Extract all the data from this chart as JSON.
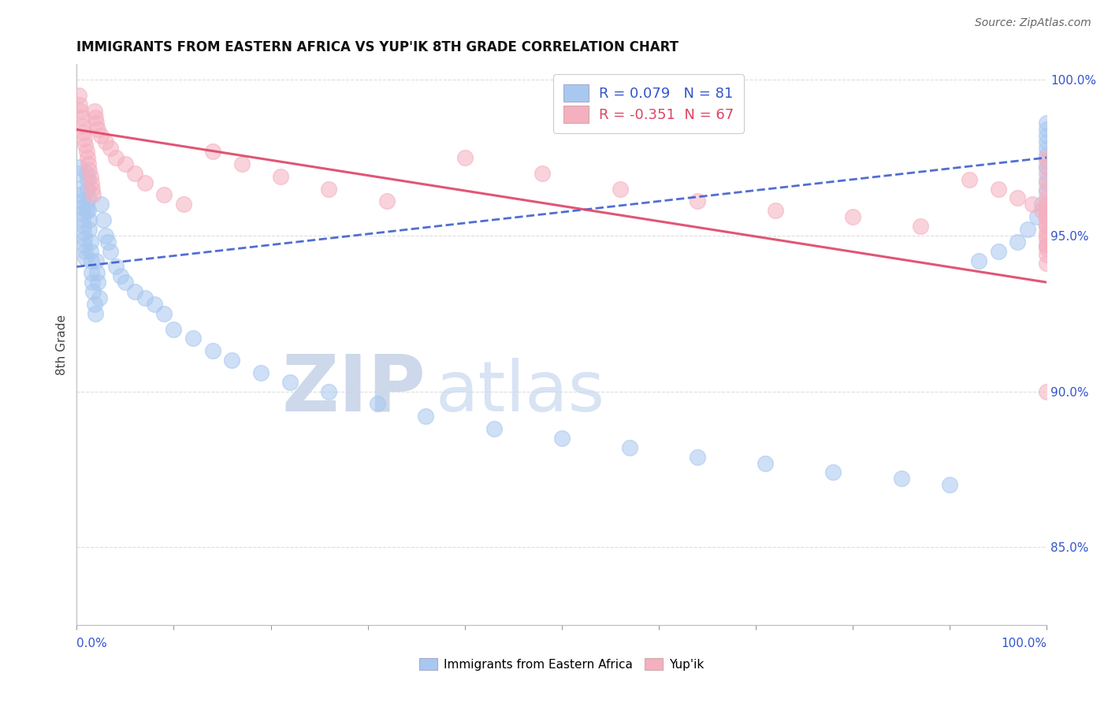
{
  "title": "IMMIGRANTS FROM EASTERN AFRICA VS YUP'IK 8TH GRADE CORRELATION CHART",
  "source": "Source: ZipAtlas.com",
  "ylabel": "8th Grade",
  "blue_R": 0.079,
  "blue_N": 81,
  "pink_R": -0.351,
  "pink_N": 67,
  "legend_label_blue": "Immigrants from Eastern Africa",
  "legend_label_pink": "Yup'ik",
  "blue_color": "#A8C8F0",
  "pink_color": "#F5B0C0",
  "blue_line_color": "#3355CC",
  "pink_line_color": "#DD4466",
  "blue_line_style": "--",
  "pink_line_style": "-",
  "watermark_zip": "ZIP",
  "watermark_atlas": "atlas",
  "background_color": "#FFFFFF",
  "grid_color": "#DDDDDD",
  "tick_color": "#3355CC",
  "xlim": [
    0.0,
    1.0
  ],
  "ylim": [
    0.825,
    1.005
  ],
  "y_ticks": [
    0.85,
    0.9,
    0.95,
    1.0
  ],
  "y_tick_labels": [
    "85.0%",
    "90.0%",
    "95.0%",
    "100.0%"
  ],
  "blue_line_x": [
    0.0,
    1.0
  ],
  "blue_line_y": [
    0.94,
    0.975
  ],
  "pink_line_x": [
    0.0,
    1.0
  ],
  "pink_line_y": [
    0.984,
    0.935
  ],
  "blue_x": [
    0.002,
    0.003,
    0.004,
    0.004,
    0.005,
    0.005,
    0.006,
    0.006,
    0.007,
    0.007,
    0.008,
    0.008,
    0.009,
    0.009,
    0.01,
    0.01,
    0.01,
    0.011,
    0.011,
    0.012,
    0.012,
    0.013,
    0.013,
    0.014,
    0.014,
    0.015,
    0.015,
    0.016,
    0.017,
    0.018,
    0.019,
    0.02,
    0.021,
    0.022,
    0.023,
    0.025,
    0.027,
    0.03,
    0.032,
    0.035,
    0.04,
    0.045,
    0.05,
    0.06,
    0.07,
    0.08,
    0.09,
    0.1,
    0.12,
    0.14,
    0.16,
    0.19,
    0.22,
    0.26,
    0.31,
    0.36,
    0.43,
    0.5,
    0.57,
    0.64,
    0.71,
    0.78,
    0.85,
    0.9,
    0.93,
    0.95,
    0.97,
    0.98,
    0.99,
    0.995,
    1.0,
    1.0,
    1.0,
    1.0,
    1.0,
    1.0,
    1.0,
    1.0,
    1.0,
    1.0,
    1.0
  ],
  "blue_y": [
    0.97,
    0.972,
    0.965,
    0.963,
    0.961,
    0.959,
    0.957,
    0.955,
    0.953,
    0.951,
    0.949,
    0.947,
    0.945,
    0.943,
    0.96,
    0.958,
    0.97,
    0.968,
    0.965,
    0.962,
    0.958,
    0.955,
    0.952,
    0.948,
    0.945,
    0.942,
    0.938,
    0.935,
    0.932,
    0.928,
    0.925,
    0.942,
    0.938,
    0.935,
    0.93,
    0.96,
    0.955,
    0.95,
    0.948,
    0.945,
    0.94,
    0.937,
    0.935,
    0.932,
    0.93,
    0.928,
    0.925,
    0.92,
    0.917,
    0.913,
    0.91,
    0.906,
    0.903,
    0.9,
    0.896,
    0.892,
    0.888,
    0.885,
    0.882,
    0.879,
    0.877,
    0.874,
    0.872,
    0.87,
    0.942,
    0.945,
    0.948,
    0.952,
    0.956,
    0.96,
    0.964,
    0.967,
    0.97,
    0.972,
    0.974,
    0.976,
    0.978,
    0.98,
    0.982,
    0.984,
    0.986
  ],
  "pink_x": [
    0.002,
    0.003,
    0.004,
    0.005,
    0.006,
    0.007,
    0.008,
    0.009,
    0.01,
    0.011,
    0.012,
    0.013,
    0.014,
    0.015,
    0.016,
    0.017,
    0.018,
    0.019,
    0.02,
    0.022,
    0.025,
    0.03,
    0.035,
    0.04,
    0.05,
    0.06,
    0.07,
    0.09,
    0.11,
    0.14,
    0.17,
    0.21,
    0.26,
    0.32,
    0.4,
    0.48,
    0.56,
    0.64,
    0.72,
    0.8,
    0.87,
    0.92,
    0.95,
    0.97,
    0.985,
    0.995,
    1.0,
    1.0,
    1.0,
    1.0,
    1.0,
    1.0,
    1.0,
    1.0,
    1.0,
    1.0,
    1.0,
    1.0,
    1.0,
    1.0,
    1.0,
    1.0,
    1.0,
    1.0,
    1.0,
    1.0,
    1.0
  ],
  "pink_y": [
    0.995,
    0.992,
    0.99,
    0.988,
    0.985,
    0.983,
    0.981,
    0.979,
    0.977,
    0.975,
    0.973,
    0.971,
    0.969,
    0.967,
    0.965,
    0.963,
    0.99,
    0.988,
    0.986,
    0.984,
    0.982,
    0.98,
    0.978,
    0.975,
    0.973,
    0.97,
    0.967,
    0.963,
    0.96,
    0.977,
    0.973,
    0.969,
    0.965,
    0.961,
    0.975,
    0.97,
    0.965,
    0.961,
    0.958,
    0.956,
    0.953,
    0.968,
    0.965,
    0.962,
    0.96,
    0.958,
    0.975,
    0.972,
    0.968,
    0.965,
    0.962,
    0.96,
    0.957,
    0.955,
    0.953,
    0.951,
    0.949,
    0.947,
    0.946,
    0.959,
    0.956,
    0.953,
    0.95,
    0.947,
    0.944,
    0.941,
    0.9
  ]
}
